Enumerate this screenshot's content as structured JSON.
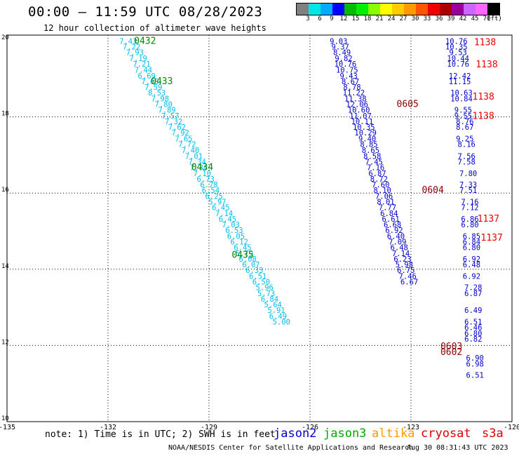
{
  "header": {
    "title": "00:00 – 11:59 UTC 08/28/2023",
    "subtitle": "12 hour collection of altimeter wave heights"
  },
  "legend": {
    "colors": [
      "#808080",
      "#00e5e5",
      "#00aaff",
      "#0000ff",
      "#00bb00",
      "#00ee00",
      "#88ff00",
      "#ffff00",
      "#ffcc00",
      "#ff9900",
      "#ff5500",
      "#ee0000",
      "#aa0000",
      "#990099",
      "#cc66ff",
      "#ff66ff",
      "#000000"
    ],
    "labels": [
      "3",
      "6",
      "9",
      "12",
      "15",
      "18",
      "21",
      "24",
      "27",
      "30",
      "33",
      "36",
      "39",
      "42",
      "45",
      "70",
      "(ft)"
    ]
  },
  "footer": {
    "note": "note: 1) Time is in UTC; 2) SWH is in feet",
    "satellites": [
      {
        "name": "jason2",
        "color": "#0000cc"
      },
      {
        "name": "jason3",
        "color": "#00aa00"
      },
      {
        "name": "altika",
        "color": "#ff9900"
      },
      {
        "name": "cryosat",
        "color": "#dd0000"
      },
      {
        "name": "s3a",
        "color": "#dd0000"
      }
    ],
    "credit": "NOAA/NESDIS Center for Satellite Applications and Research",
    "timestamp": "Aug 30 08:31:43 UTC 2023"
  },
  "chart_data": {
    "type": "scatter",
    "title": "00:00 – 11:59 UTC 08/28/2023",
    "subtitle": "12 hour collection of altimeter wave heights",
    "xlabel": "",
    "ylabel": "",
    "xlim": [
      -135,
      -120
    ],
    "ylim": [
      10,
      20
    ],
    "x_ticks": [
      "-135",
      "-132",
      "-129",
      "-126",
      "-123",
      "-120"
    ],
    "y_ticks": [
      "10",
      "12",
      "14",
      "16",
      "18",
      "20"
    ],
    "grid": true,
    "series": [
      {
        "color": "#00bfee",
        "points": [
          {
            "lon": -131.4,
            "lat": 19.92,
            "v": "7.43"
          },
          {
            "lon": -131.3,
            "lat": 19.77,
            "v": "7.22"
          },
          {
            "lon": -131.2,
            "lat": 19.62,
            "v": "7.93"
          },
          {
            "lon": -131.1,
            "lat": 19.47,
            "v": "7.19"
          },
          {
            "lon": -131.0,
            "lat": 19.32,
            "v": "7.21"
          },
          {
            "lon": -130.95,
            "lat": 19.16,
            "v": "7.44"
          },
          {
            "lon": -130.85,
            "lat": 19.01,
            "v": "6.69"
          },
          {
            "lon": -130.75,
            "lat": 18.86,
            "v": "7.68"
          },
          {
            "lon": -130.65,
            "lat": 18.71,
            "v": "7.59"
          },
          {
            "lon": -130.55,
            "lat": 18.56,
            "v": "8.53"
          },
          {
            "lon": -130.45,
            "lat": 18.41,
            "v": "7.98"
          },
          {
            "lon": -130.35,
            "lat": 18.26,
            "v": "7.80"
          },
          {
            "lon": -130.25,
            "lat": 18.11,
            "v": "7.89"
          },
          {
            "lon": -130.15,
            "lat": 17.96,
            "v": "7.57"
          },
          {
            "lon": -130.05,
            "lat": 17.81,
            "v": "7.32"
          },
          {
            "lon": -129.95,
            "lat": 17.66,
            "v": "7.62"
          },
          {
            "lon": -129.85,
            "lat": 17.51,
            "v": "7.92"
          },
          {
            "lon": -129.75,
            "lat": 17.36,
            "v": "7.65"
          },
          {
            "lon": -129.65,
            "lat": 17.21,
            "v": "7.72"
          },
          {
            "lon": -129.55,
            "lat": 17.05,
            "v": "7.40"
          },
          {
            "lon": -129.45,
            "lat": 16.9,
            "v": "7.01"
          },
          {
            "lon": -129.35,
            "lat": 16.75,
            "v": "7.34"
          },
          {
            "lon": -129.3,
            "lat": 16.6,
            "v": "7.34"
          },
          {
            "lon": -129.2,
            "lat": 16.45,
            "v": "7.10"
          },
          {
            "lon": -129.1,
            "lat": 16.3,
            "v": "6.73"
          },
          {
            "lon": -129.0,
            "lat": 16.15,
            "v": "6.78"
          },
          {
            "lon": -128.95,
            "lat": 16.0,
            "v": "6.54"
          },
          {
            "lon": -128.85,
            "lat": 15.85,
            "v": "6.25"
          },
          {
            "lon": -128.75,
            "lat": 15.7,
            "v": "5.97"
          },
          {
            "lon": -128.65,
            "lat": 15.55,
            "v": "6.45"
          },
          {
            "lon": -128.55,
            "lat": 15.4,
            "v": "7.14"
          },
          {
            "lon": -128.45,
            "lat": 15.25,
            "v": "6.45"
          },
          {
            "lon": -128.35,
            "lat": 15.1,
            "v": "7.03"
          },
          {
            "lon": -128.25,
            "lat": 14.95,
            "v": "6.53"
          },
          {
            "lon": -128.2,
            "lat": 14.8,
            "v": "6.05"
          },
          {
            "lon": -128.1,
            "lat": 14.65,
            "v": "6.12"
          },
          {
            "lon": -128.0,
            "lat": 14.5,
            "v": "6.45"
          },
          {
            "lon": -127.95,
            "lat": 14.35,
            "v": "5.79"
          },
          {
            "lon": -127.85,
            "lat": 14.2,
            "v": "6.08"
          },
          {
            "lon": -127.75,
            "lat": 14.05,
            "v": "6.07"
          },
          {
            "lon": -127.65,
            "lat": 13.9,
            "v": "6.33"
          },
          {
            "lon": -127.55,
            "lat": 13.75,
            "v": "6.51"
          },
          {
            "lon": -127.45,
            "lat": 13.6,
            "v": "6.50"
          },
          {
            "lon": -127.35,
            "lat": 13.45,
            "v": "5.96"
          },
          {
            "lon": -127.3,
            "lat": 13.3,
            "v": "5.73"
          },
          {
            "lon": -127.2,
            "lat": 13.15,
            "v": "6.84"
          },
          {
            "lon": -127.1,
            "lat": 13.0,
            "v": "5.64"
          },
          {
            "lon": -127.0,
            "lat": 12.85,
            "v": "5.91"
          },
          {
            "lon": -126.95,
            "lat": 12.7,
            "v": "6.49"
          },
          {
            "lon": -126.85,
            "lat": 12.55,
            "v": "5.00"
          }
        ]
      },
      {
        "color": "#0000cc",
        "points": [
          {
            "lon": -125.15,
            "lat": 19.92,
            "v": "9.03"
          },
          {
            "lon": -125.1,
            "lat": 19.77,
            "v": "9.37"
          },
          {
            "lon": -125.05,
            "lat": 19.62,
            "v": "8.49"
          },
          {
            "lon": -125.0,
            "lat": 19.47,
            "v": "9.82"
          },
          {
            "lon": -124.95,
            "lat": 19.32,
            "v": "10.76"
          },
          {
            "lon": -124.9,
            "lat": 19.16,
            "v": "10.75"
          },
          {
            "lon": -124.85,
            "lat": 19.01,
            "v": "9.43"
          },
          {
            "lon": -124.8,
            "lat": 18.86,
            "v": "8.67"
          },
          {
            "lon": -124.75,
            "lat": 18.71,
            "v": "8.78"
          },
          {
            "lon": -124.7,
            "lat": 18.56,
            "v": "11.22"
          },
          {
            "lon": -124.65,
            "lat": 18.41,
            "v": "11.38"
          },
          {
            "lon": -124.6,
            "lat": 18.26,
            "v": "12.06"
          },
          {
            "lon": -124.55,
            "lat": 18.11,
            "v": "10.60"
          },
          {
            "lon": -124.5,
            "lat": 17.96,
            "v": "11.07"
          },
          {
            "lon": -124.45,
            "lat": 17.81,
            "v": "10.11"
          },
          {
            "lon": -124.4,
            "lat": 17.66,
            "v": "10.35"
          },
          {
            "lon": -124.35,
            "lat": 17.51,
            "v": "10.29"
          },
          {
            "lon": -124.3,
            "lat": 17.36,
            "v": "9.40"
          },
          {
            "lon": -124.25,
            "lat": 17.21,
            "v": "8.85"
          },
          {
            "lon": -124.2,
            "lat": 17.05,
            "v": "8.65"
          },
          {
            "lon": -124.15,
            "lat": 16.9,
            "v": "8.58"
          },
          {
            "lon": -124.1,
            "lat": 16.75,
            "v": "7.45"
          },
          {
            "lon": -124.05,
            "lat": 16.6,
            "v": "7.16"
          },
          {
            "lon": -124.0,
            "lat": 16.45,
            "v": "6.87"
          },
          {
            "lon": -123.95,
            "lat": 16.3,
            "v": "8.72"
          },
          {
            "lon": -123.9,
            "lat": 16.15,
            "v": "7.60"
          },
          {
            "lon": -123.85,
            "lat": 16.0,
            "v": "8.10"
          },
          {
            "lon": -123.8,
            "lat": 15.85,
            "v": "7.06"
          },
          {
            "lon": -123.75,
            "lat": 15.7,
            "v": "8.01"
          },
          {
            "lon": -123.7,
            "lat": 15.55,
            "v": "7.77"
          },
          {
            "lon": -123.65,
            "lat": 15.4,
            "v": "6.84"
          },
          {
            "lon": -123.6,
            "lat": 15.25,
            "v": "6.61"
          },
          {
            "lon": -123.55,
            "lat": 15.1,
            "v": "6.68"
          },
          {
            "lon": -123.5,
            "lat": 14.95,
            "v": "6.92"
          },
          {
            "lon": -123.45,
            "lat": 14.8,
            "v": "6.40"
          },
          {
            "lon": -123.4,
            "lat": 14.65,
            "v": "7.09"
          },
          {
            "lon": -123.35,
            "lat": 14.5,
            "v": "6.48"
          },
          {
            "lon": -123.3,
            "lat": 14.35,
            "v": "7.14"
          },
          {
            "lon": -123.25,
            "lat": 14.2,
            "v": "6.23"
          },
          {
            "lon": -123.2,
            "lat": 14.05,
            "v": "5.98"
          },
          {
            "lon": -123.15,
            "lat": 13.9,
            "v": "6.75"
          },
          {
            "lon": -123.1,
            "lat": 13.75,
            "v": "7.46"
          },
          {
            "lon": -123.05,
            "lat": 13.6,
            "v": "6.67"
          }
        ]
      },
      {
        "color": "#0000cc",
        "points": [
          {
            "lon": -121.65,
            "lat": 19.92,
            "v": "10.76"
          },
          {
            "lon": -121.65,
            "lat": 19.77,
            "v": "10.35"
          },
          {
            "lon": -121.6,
            "lat": 19.62,
            "v": "9.53"
          },
          {
            "lon": -121.6,
            "lat": 19.47,
            "v": "10.44"
          },
          {
            "lon": -121.6,
            "lat": 19.32,
            "v": "10.76"
          },
          {
            "lon": -121.55,
            "lat": 19.01,
            "v": "12.42"
          },
          {
            "lon": -121.55,
            "lat": 18.86,
            "v": "11.15"
          },
          {
            "lon": -121.5,
            "lat": 18.56,
            "v": "10.63"
          },
          {
            "lon": -121.5,
            "lat": 18.41,
            "v": "10.84"
          },
          {
            "lon": -121.45,
            "lat": 18.11,
            "v": "9.55"
          },
          {
            "lon": -121.45,
            "lat": 17.96,
            "v": "9.55"
          },
          {
            "lon": -121.4,
            "lat": 17.81,
            "v": "8.76"
          },
          {
            "lon": -121.4,
            "lat": 17.66,
            "v": "8.67"
          },
          {
            "lon": -121.4,
            "lat": 17.36,
            "v": "9.25"
          },
          {
            "lon": -121.35,
            "lat": 17.21,
            "v": "8.16"
          },
          {
            "lon": -121.35,
            "lat": 16.9,
            "v": "7.56"
          },
          {
            "lon": -121.35,
            "lat": 16.75,
            "v": "7.58"
          },
          {
            "lon": -121.3,
            "lat": 16.45,
            "v": "7.80"
          },
          {
            "lon": -121.3,
            "lat": 16.15,
            "v": "7.33"
          },
          {
            "lon": -121.3,
            "lat": 16.0,
            "v": "7.51"
          },
          {
            "lon": -121.25,
            "lat": 15.7,
            "v": "7.16"
          },
          {
            "lon": -121.25,
            "lat": 15.55,
            "v": "7.12"
          },
          {
            "lon": -121.25,
            "lat": 15.25,
            "v": "6.86"
          },
          {
            "lon": -121.25,
            "lat": 15.1,
            "v": "6.80"
          },
          {
            "lon": -121.2,
            "lat": 14.8,
            "v": "6.85"
          },
          {
            "lon": -121.2,
            "lat": 14.65,
            "v": "6.84"
          },
          {
            "lon": -121.2,
            "lat": 14.5,
            "v": "6.80"
          },
          {
            "lon": -121.2,
            "lat": 14.2,
            "v": "6.92"
          },
          {
            "lon": -121.2,
            "lat": 14.05,
            "v": "6.48"
          },
          {
            "lon": -121.2,
            "lat": 13.75,
            "v": "6.92"
          },
          {
            "lon": -121.15,
            "lat": 13.45,
            "v": "7.28"
          },
          {
            "lon": -121.15,
            "lat": 13.3,
            "v": "6.87"
          },
          {
            "lon": -121.15,
            "lat": 12.85,
            "v": "6.49"
          },
          {
            "lon": -121.15,
            "lat": 12.55,
            "v": "6.51"
          },
          {
            "lon": -121.15,
            "lat": 12.4,
            "v": "6.46"
          },
          {
            "lon": -121.15,
            "lat": 12.25,
            "v": "6.80"
          },
          {
            "lon": -121.15,
            "lat": 12.1,
            "v": "6.82"
          },
          {
            "lon": -121.1,
            "lat": 11.6,
            "v": "6.90"
          },
          {
            "lon": -121.1,
            "lat": 11.45,
            "v": "6.98"
          },
          {
            "lon": -121.1,
            "lat": 11.15,
            "v": "6.51"
          }
        ]
      }
    ],
    "time_labels": [
      {
        "lon": -130.9,
        "lat": 19.92,
        "text": "0432",
        "color": "#008800"
      },
      {
        "lon": -130.4,
        "lat": 18.86,
        "text": "0433",
        "color": "#008800"
      },
      {
        "lon": -129.2,
        "lat": 16.6,
        "text": "0434",
        "color": "#008800"
      },
      {
        "lon": -128.0,
        "lat": 14.3,
        "text": "0435",
        "color": "#008800"
      },
      {
        "lon": -123.1,
        "lat": 18.26,
        "text": "0605",
        "color": "#880000"
      },
      {
        "lon": -122.35,
        "lat": 16.0,
        "text": "0604",
        "color": "#880000"
      },
      {
        "lon": -121.8,
        "lat": 11.9,
        "text": "0603",
        "color": "#880000"
      },
      {
        "lon": -121.8,
        "lat": 11.75,
        "text": "0602",
        "color": "#880000"
      },
      {
        "lon": -120.8,
        "lat": 19.88,
        "text": "1138",
        "color": "#ee0000"
      },
      {
        "lon": -120.75,
        "lat": 19.3,
        "text": "1138",
        "color": "#ee0000"
      },
      {
        "lon": -120.85,
        "lat": 18.45,
        "text": "1138",
        "color": "#ee0000"
      },
      {
        "lon": -120.85,
        "lat": 17.95,
        "text": "1138",
        "color": "#ee0000"
      },
      {
        "lon": -120.7,
        "lat": 15.25,
        "text": "1137",
        "color": "#ee0000"
      },
      {
        "lon": -120.6,
        "lat": 14.75,
        "text": "1137",
        "color": "#ee0000"
      }
    ]
  }
}
